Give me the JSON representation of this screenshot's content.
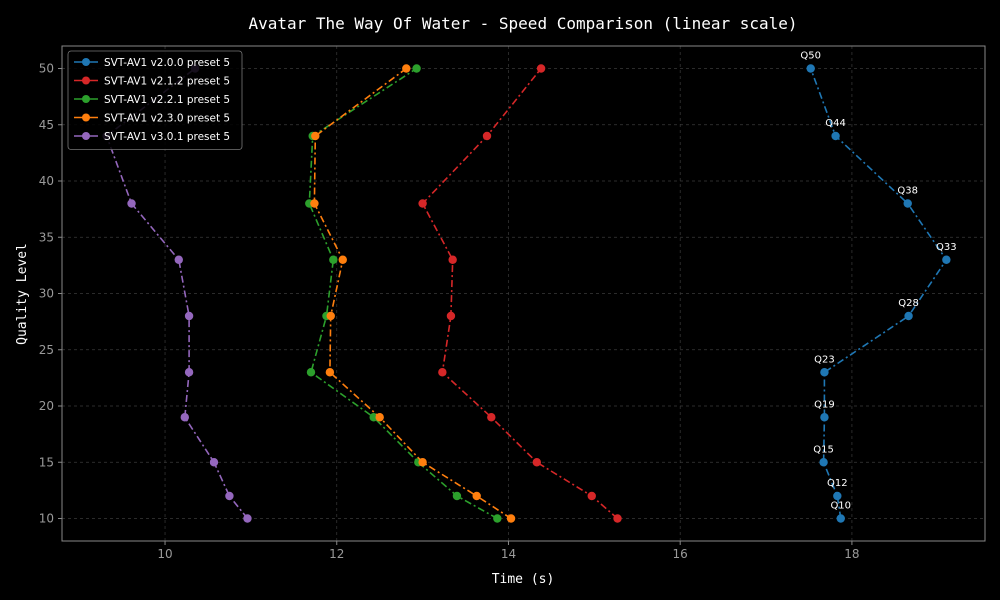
{
  "chart_data": {
    "type": "line",
    "title": "Avatar The Way Of Water - Speed Comparison (linear scale)",
    "xlabel": "Time (s)",
    "ylabel": "Quality Level",
    "xlim": [
      8.8,
      19.55
    ],
    "ylim": [
      8.0,
      52.0
    ],
    "xticks": [
      10,
      12,
      14,
      16,
      18
    ],
    "yticks": [
      10,
      15,
      20,
      25,
      30,
      35,
      40,
      45,
      50
    ],
    "grid": true,
    "legend_position": "top-left",
    "colors": {
      "background": "#000000",
      "grid": "#3a3a3a",
      "spine": "#888888",
      "tick": "#9a9a9a",
      "text": "#ffffff"
    },
    "y": [
      10,
      12,
      15,
      19,
      23,
      28,
      33,
      38,
      44,
      50
    ],
    "series": [
      {
        "name": "SVT-AV1 v2.0.0 preset 5",
        "color": "#1f77b4",
        "x": [
          17.87,
          17.83,
          17.67,
          17.68,
          17.68,
          18.66,
          19.1,
          18.65,
          17.81,
          17.52
        ]
      },
      {
        "name": "SVT-AV1 v2.1.2 preset 5",
        "color": "#d62728",
        "x": [
          15.27,
          14.97,
          14.33,
          13.8,
          13.23,
          13.33,
          13.35,
          13.0,
          13.75,
          14.38
        ]
      },
      {
        "name": "SVT-AV1 v2.2.1 preset 5",
        "color": "#2ca02c",
        "x": [
          13.87,
          13.4,
          12.95,
          12.43,
          11.7,
          11.88,
          11.96,
          11.68,
          11.72,
          12.93
        ]
      },
      {
        "name": "SVT-AV1 v2.3.0 preset 5",
        "color": "#ff7f0e",
        "x": [
          14.03,
          13.63,
          13.0,
          12.5,
          11.92,
          11.93,
          12.07,
          11.74,
          11.75,
          12.81
        ]
      },
      {
        "name": "SVT-AV1 v3.0.1 preset 5",
        "color": "#9467bd",
        "x": [
          10.96,
          10.75,
          10.57,
          10.23,
          10.28,
          10.28,
          10.16,
          9.61,
          9.32,
          10.35
        ]
      }
    ],
    "annotations": {
      "series": 0,
      "labels": [
        "Q10",
        "Q12",
        "Q15",
        "Q19",
        "Q23",
        "Q28",
        "Q33",
        "Q38",
        "Q44",
        "Q50"
      ]
    }
  }
}
